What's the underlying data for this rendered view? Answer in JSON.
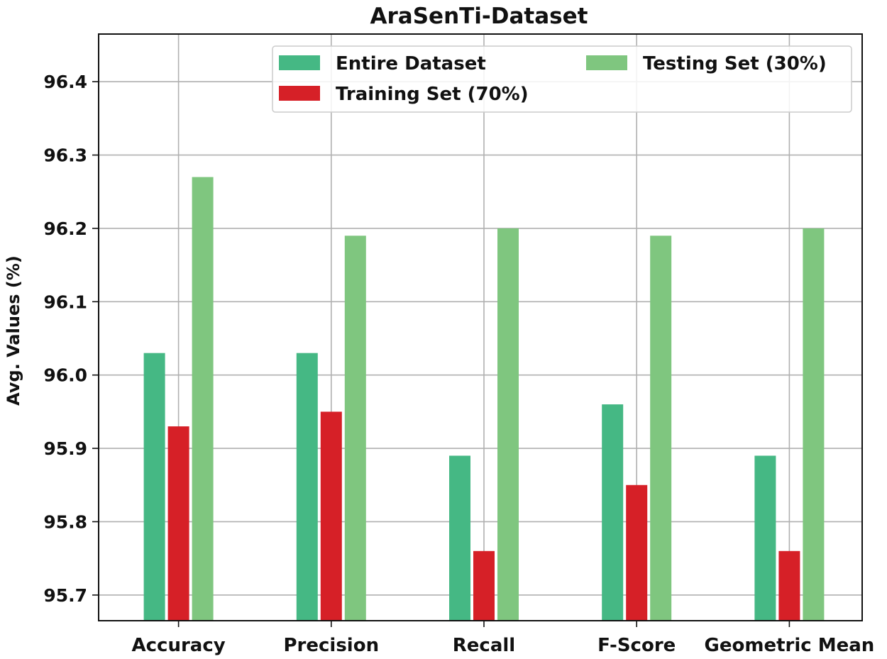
{
  "chart_data": {
    "type": "bar",
    "title": "AraSenTi-Dataset",
    "xlabel": "",
    "ylabel": "Avg. Values (%)",
    "categories": [
      "Accuracy",
      "Precision",
      "Recall",
      "F-Score",
      "Geometric Mean"
    ],
    "series": [
      {
        "name": "Entire Dataset",
        "color": "#45b884",
        "values": [
          96.03,
          96.03,
          95.89,
          95.96,
          95.89
        ]
      },
      {
        "name": "Training Set (70%)",
        "color": "#d62027",
        "values": [
          95.93,
          95.95,
          95.76,
          95.85,
          95.76
        ]
      },
      {
        "name": "Testing Set (30%)",
        "color": "#7fc67f",
        "values": [
          96.27,
          96.19,
          96.2,
          96.19,
          96.2
        ]
      }
    ],
    "ylim": [
      95.665,
      96.465
    ],
    "yticks": [
      "95.7",
      "95.8",
      "95.9",
      "96.0",
      "96.1",
      "96.2",
      "96.3",
      "96.4"
    ],
    "grid": true,
    "legend_position": "top-right"
  }
}
